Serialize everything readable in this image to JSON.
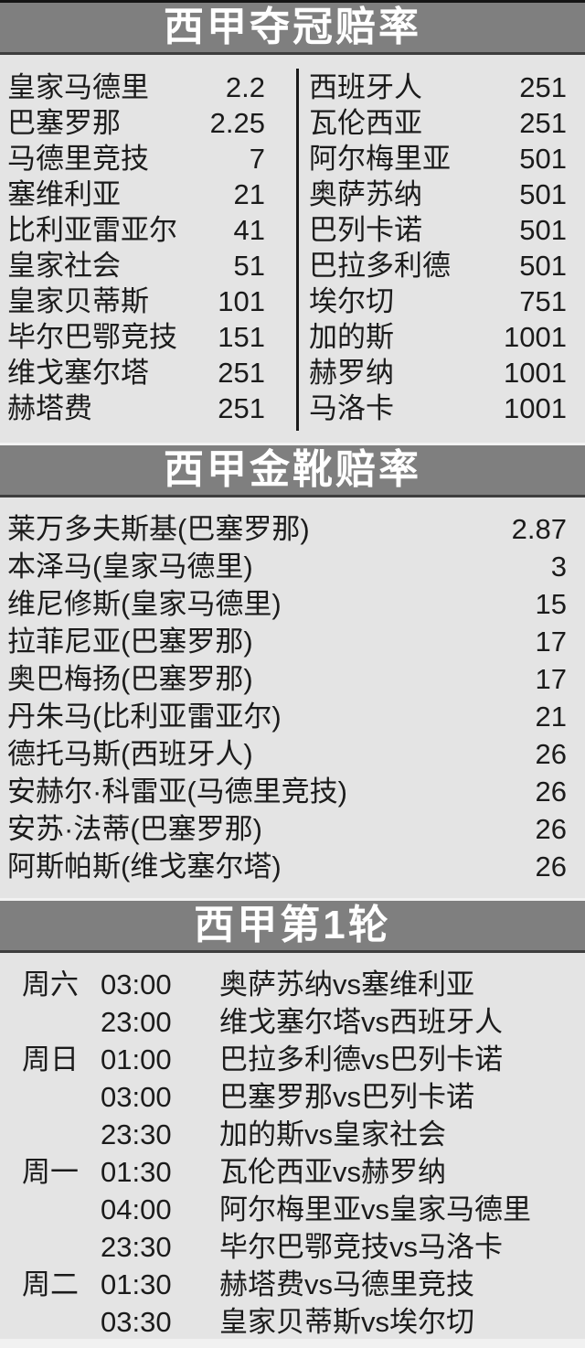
{
  "theme": {
    "page_bg": "#e4e4e4",
    "band_bg": "#7f7f7f",
    "band_text_color": "#ffffff",
    "body_text_color": "#1b1b1b"
  },
  "sections": {
    "champion": {
      "title": "西甲夺冠赔率",
      "left": [
        {
          "name": "皇家马德里",
          "odds": "2.2"
        },
        {
          "name": "巴塞罗那",
          "odds": "2.25"
        },
        {
          "name": "马德里竞技",
          "odds": "7"
        },
        {
          "name": "塞维利亚",
          "odds": "21"
        },
        {
          "name": "比利亚雷亚尔",
          "odds": "41"
        },
        {
          "name": "皇家社会",
          "odds": "51"
        },
        {
          "name": "皇家贝蒂斯",
          "odds": "101"
        },
        {
          "name": "毕尔巴鄂竞技",
          "odds": "151"
        },
        {
          "name": "维戈塞尔塔",
          "odds": "251"
        },
        {
          "name": "赫塔费",
          "odds": "251"
        }
      ],
      "right": [
        {
          "name": "西班牙人",
          "odds": "251"
        },
        {
          "name": "瓦伦西亚",
          "odds": "251"
        },
        {
          "name": "阿尔梅里亚",
          "odds": "501"
        },
        {
          "name": "奥萨苏纳",
          "odds": "501"
        },
        {
          "name": "巴列卡诺",
          "odds": "501"
        },
        {
          "name": "巴拉多利德",
          "odds": "501"
        },
        {
          "name": "埃尔切",
          "odds": "751"
        },
        {
          "name": "加的斯",
          "odds": "1001"
        },
        {
          "name": "赫罗纳",
          "odds": "1001"
        },
        {
          "name": "马洛卡",
          "odds": "1001"
        }
      ]
    },
    "golden_boot": {
      "title": "西甲金靴赔率",
      "rows": [
        {
          "name": "莱万多夫斯基(巴塞罗那)",
          "odds": "2.87"
        },
        {
          "name": "本泽马(皇家马德里)",
          "odds": "3"
        },
        {
          "name": "维尼修斯(皇家马德里)",
          "odds": "15"
        },
        {
          "name": "拉菲尼亚(巴塞罗那)",
          "odds": "17"
        },
        {
          "name": "奥巴梅扬(巴塞罗那)",
          "odds": "17"
        },
        {
          "name": "丹朱马(比利亚雷亚尔)",
          "odds": "21"
        },
        {
          "name": "德托马斯(西班牙人)",
          "odds": "26"
        },
        {
          "name": "安赫尔·科雷亚(马德里竞技)",
          "odds": "26"
        },
        {
          "name": "安苏·法蒂(巴塞罗那)",
          "odds": "26"
        },
        {
          "name": "阿斯帕斯(维戈塞尔塔)",
          "odds": "26"
        }
      ]
    },
    "round1": {
      "title": "西甲第1轮",
      "rows": [
        {
          "day": "周六",
          "time": "03:00",
          "match": "奥萨苏纳vs塞维利亚"
        },
        {
          "day": "",
          "time": "23:00",
          "match": "维戈塞尔塔vs西班牙人"
        },
        {
          "day": "周日",
          "time": "01:00",
          "match": "巴拉多利德vs巴列卡诺"
        },
        {
          "day": "",
          "time": "03:00",
          "match": "巴塞罗那vs巴列卡诺"
        },
        {
          "day": "",
          "time": "23:30",
          "match": "加的斯vs皇家社会"
        },
        {
          "day": "周一",
          "time": "01:30",
          "match": "瓦伦西亚vs赫罗纳"
        },
        {
          "day": "",
          "time": "04:00",
          "match": "阿尔梅里亚vs皇家马德里"
        },
        {
          "day": "",
          "time": "23:30",
          "match": "毕尔巴鄂竞技vs马洛卡"
        },
        {
          "day": "周二",
          "time": "01:30",
          "match": "赫塔费vs马德里竞技"
        },
        {
          "day": "",
          "time": "03:30",
          "match": "皇家贝蒂斯vs埃尔切"
        }
      ]
    }
  }
}
